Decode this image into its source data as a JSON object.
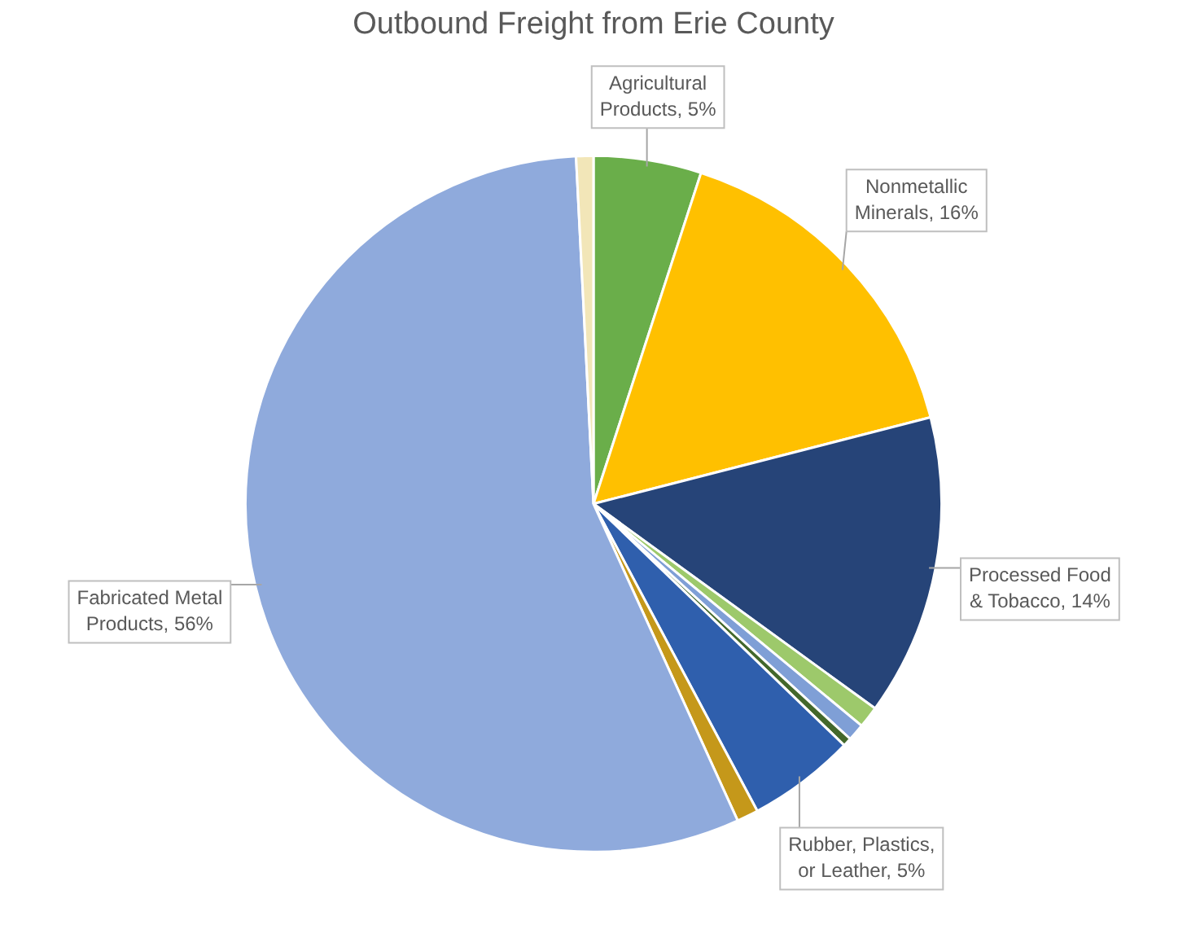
{
  "chart_data": {
    "type": "pie",
    "title": "Outbound Freight from Erie County",
    "categories": [
      "Agricultural Products, 5%",
      "Nonmetallic Minerals, 16%",
      "Processed Food & Tobacco, 14%",
      null,
      null,
      null,
      "Rubber, Plastics, or Leather, 5%",
      null,
      "Fabricated Metal Products, 56%",
      null
    ],
    "values": [
      5,
      16,
      14,
      1,
      0.8,
      0.4,
      5,
      1,
      56,
      0.8
    ],
    "colors": [
      "#6aae4a",
      "#ffc000",
      "#264478",
      "#9dc96b",
      "#7f9fd6",
      "#43682b",
      "#2f5fad",
      "#c5981a",
      "#8faadc",
      "#f2e6b8"
    ],
    "legend": false
  }
}
